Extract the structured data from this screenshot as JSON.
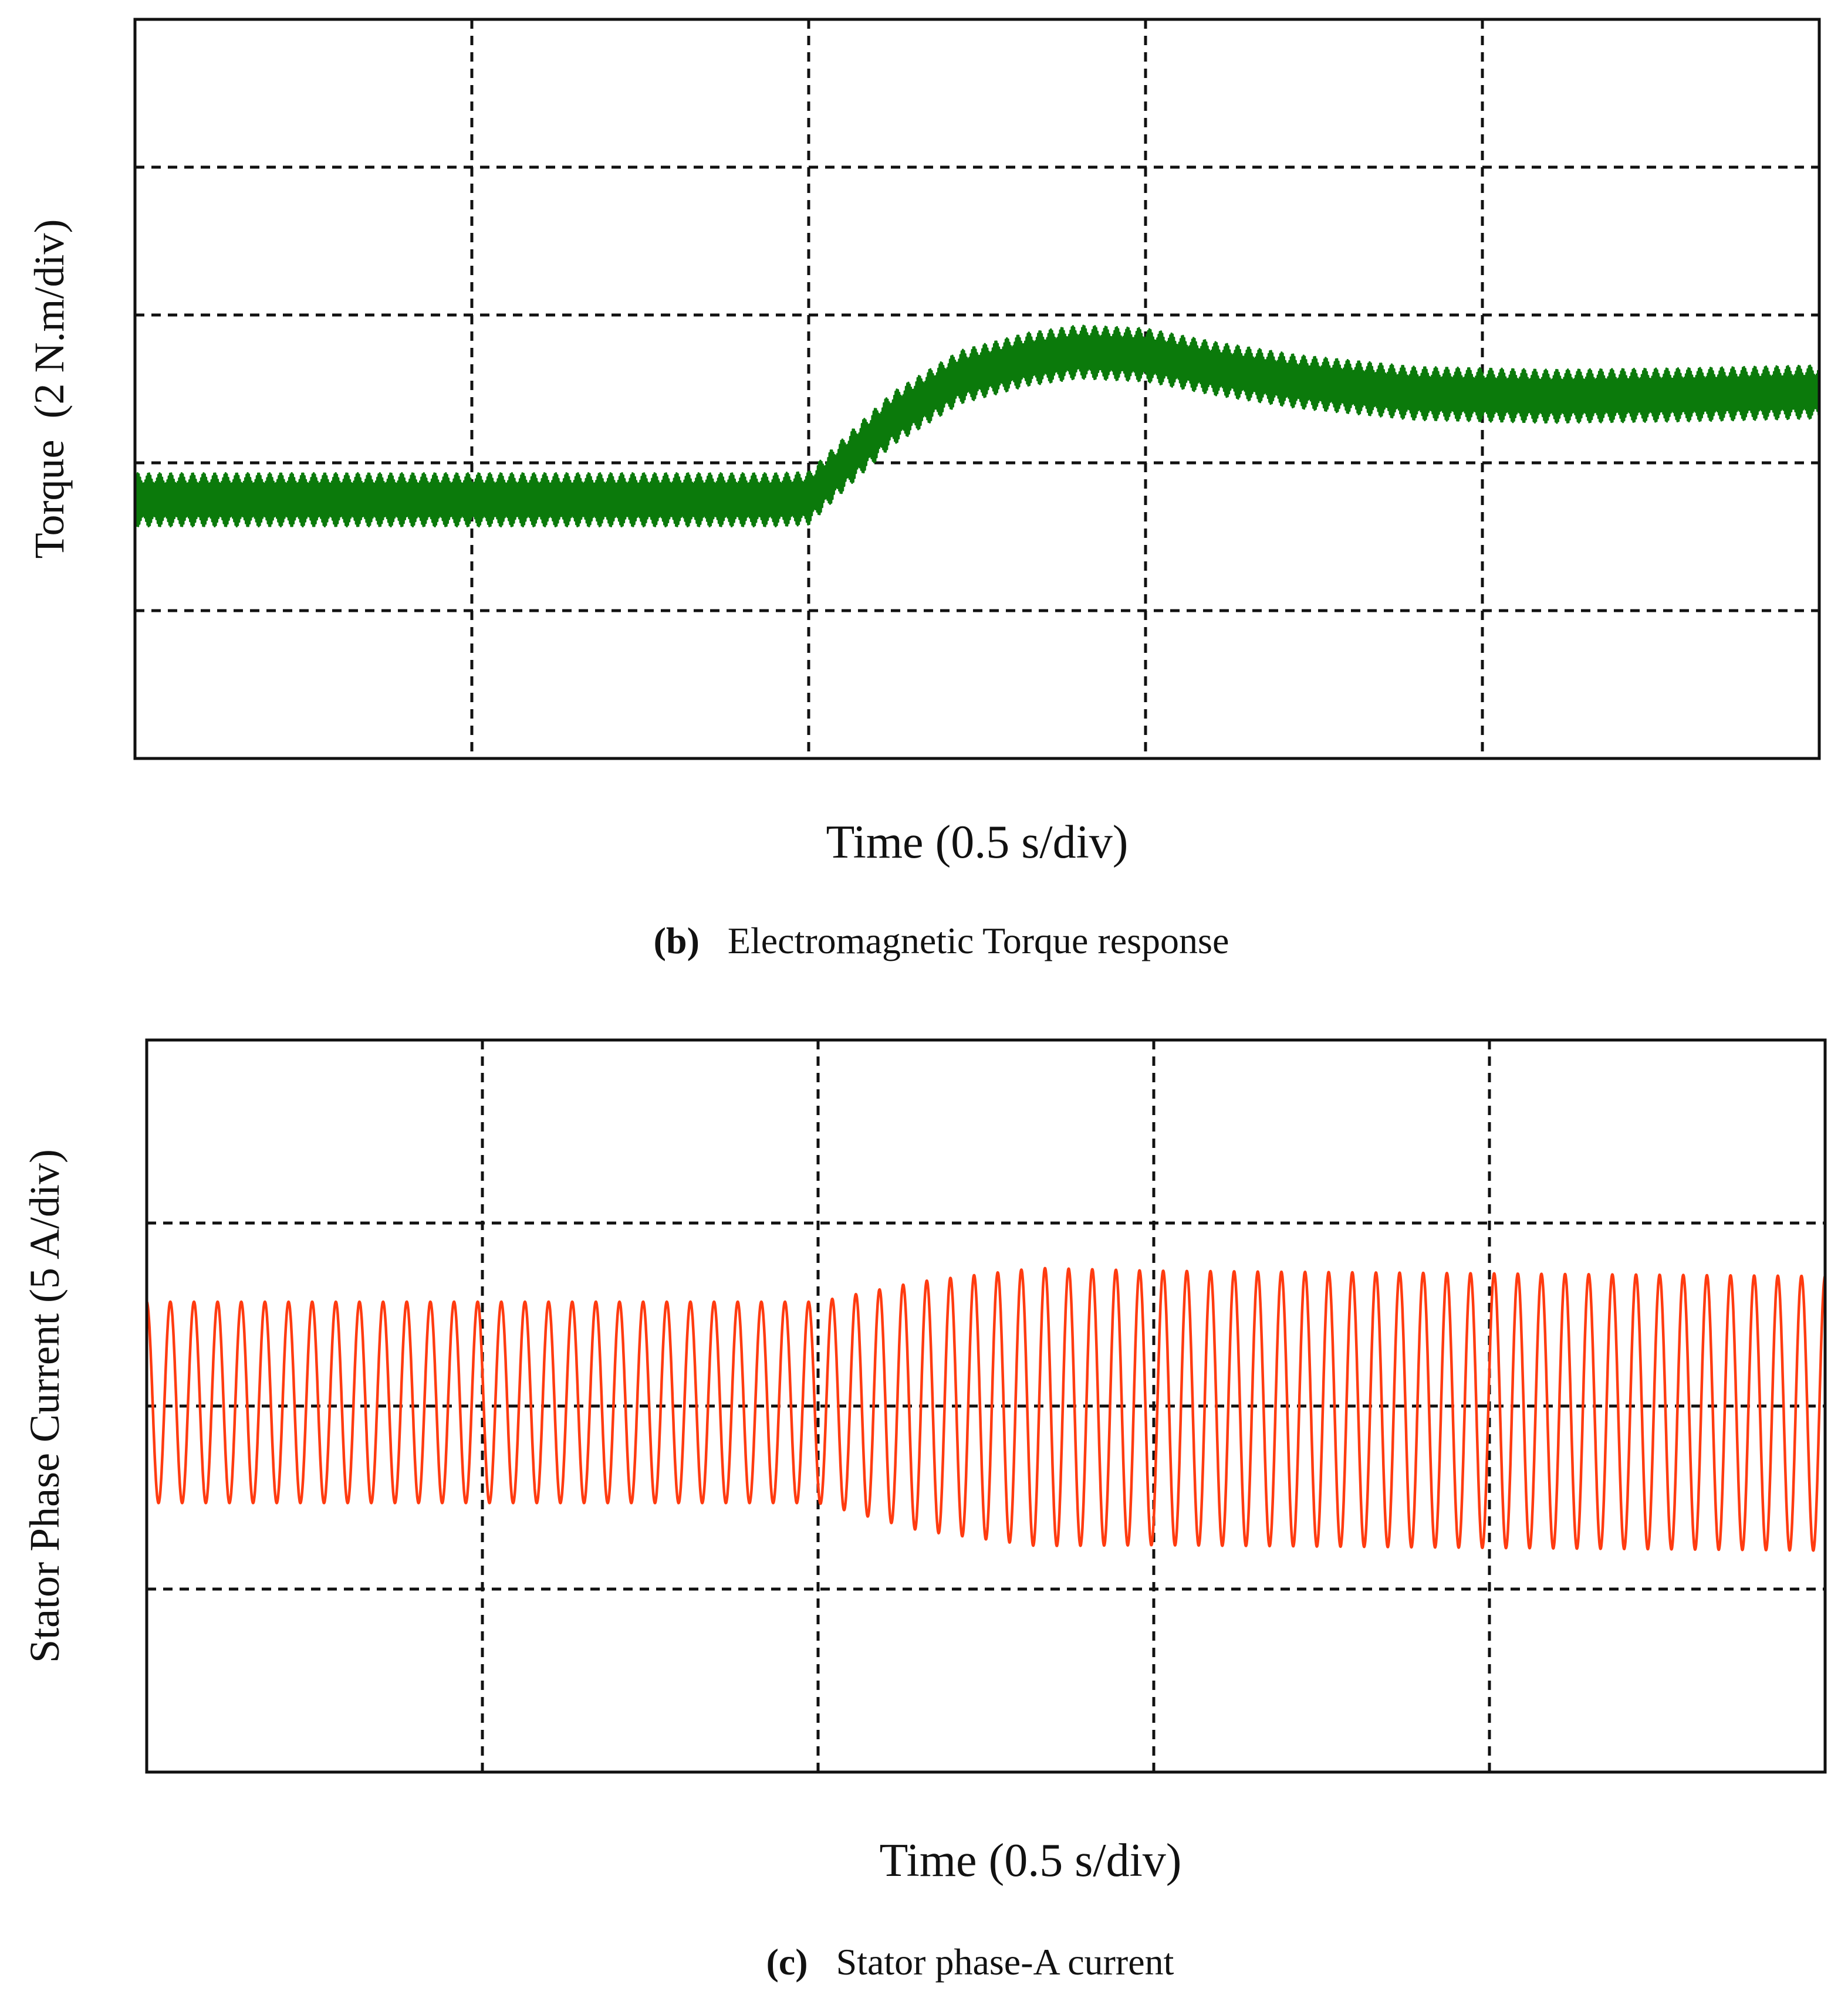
{
  "figure": {
    "panels": [
      {
        "id": "b",
        "caption_tag": "(b)",
        "caption_text": "Electromagnetic Torque response",
        "xlabel": "Time (0.5 s/div)",
        "ylabel": "Torque  (2 N.m/div)",
        "trace_color": "#0b7a0b"
      },
      {
        "id": "c",
        "caption_tag": "(c)",
        "caption_text": "Stator phase-A current",
        "xlabel": "Time (0.5 s/div)",
        "ylabel": "Stator Phase Current (5 A/div)",
        "trace_color": "#ff3b10"
      }
    ]
  },
  "chart_data": [
    {
      "type": "line",
      "title": "",
      "xlabel": "Time (0.5 s/div)",
      "ylabel": "Torque  (2 N.m/div)",
      "x_unit": "div",
      "y_unit": "div",
      "xlim": [
        0,
        5
      ],
      "ylim": [
        0,
        5
      ],
      "x_divisions": 5,
      "y_divisions": 5,
      "grid": true,
      "grid_style": "dashed",
      "series": [
        {
          "color": "#0b7a0b",
          "envelope_center": [
            {
              "x": 0.0,
              "y": 1.75
            },
            {
              "x": 1.0,
              "y": 1.75
            },
            {
              "x": 1.9,
              "y": 1.75
            },
            {
              "x": 2.0,
              "y": 1.76
            },
            {
              "x": 2.1,
              "y": 1.98
            },
            {
              "x": 2.25,
              "y": 2.3
            },
            {
              "x": 2.45,
              "y": 2.58
            },
            {
              "x": 2.65,
              "y": 2.7
            },
            {
              "x": 2.8,
              "y": 2.75
            },
            {
              "x": 3.0,
              "y": 2.73
            },
            {
              "x": 3.2,
              "y": 2.64
            },
            {
              "x": 3.45,
              "y": 2.55
            },
            {
              "x": 3.8,
              "y": 2.47
            },
            {
              "x": 4.2,
              "y": 2.45
            },
            {
              "x": 4.6,
              "y": 2.46
            },
            {
              "x": 5.0,
              "y": 2.48
            }
          ],
          "ripple_amplitude_div": 0.18
        }
      ]
    },
    {
      "type": "line",
      "title": "",
      "xlabel": "Time (0.5 s/div)",
      "ylabel": "Stator Phase Current (5 A/div)",
      "x_unit": "div",
      "y_unit": "div",
      "xlim": [
        0,
        5
      ],
      "ylim": [
        -2,
        2
      ],
      "x_divisions": 5,
      "y_divisions": 4,
      "grid": true,
      "grid_style": "dashed",
      "series": [
        {
          "color": "#ff3b10",
          "waveform": "sine",
          "cycles_per_div": 14.2,
          "amplitude_envelope": [
            {
              "x": 0.0,
              "y": 0.55
            },
            {
              "x": 2.0,
              "y": 0.55
            },
            {
              "x": 2.3,
              "y": 0.68
            },
            {
              "x": 2.65,
              "y": 0.76
            },
            {
              "x": 3.0,
              "y": 0.75
            },
            {
              "x": 5.0,
              "y": 0.75
            }
          ],
          "offset_envelope": [
            {
              "x": 0.0,
              "y": 0.02
            },
            {
              "x": 2.0,
              "y": 0.02
            },
            {
              "x": 2.3,
              "y": 0.0
            },
            {
              "x": 5.0,
              "y": -0.04
            }
          ]
        }
      ]
    }
  ]
}
